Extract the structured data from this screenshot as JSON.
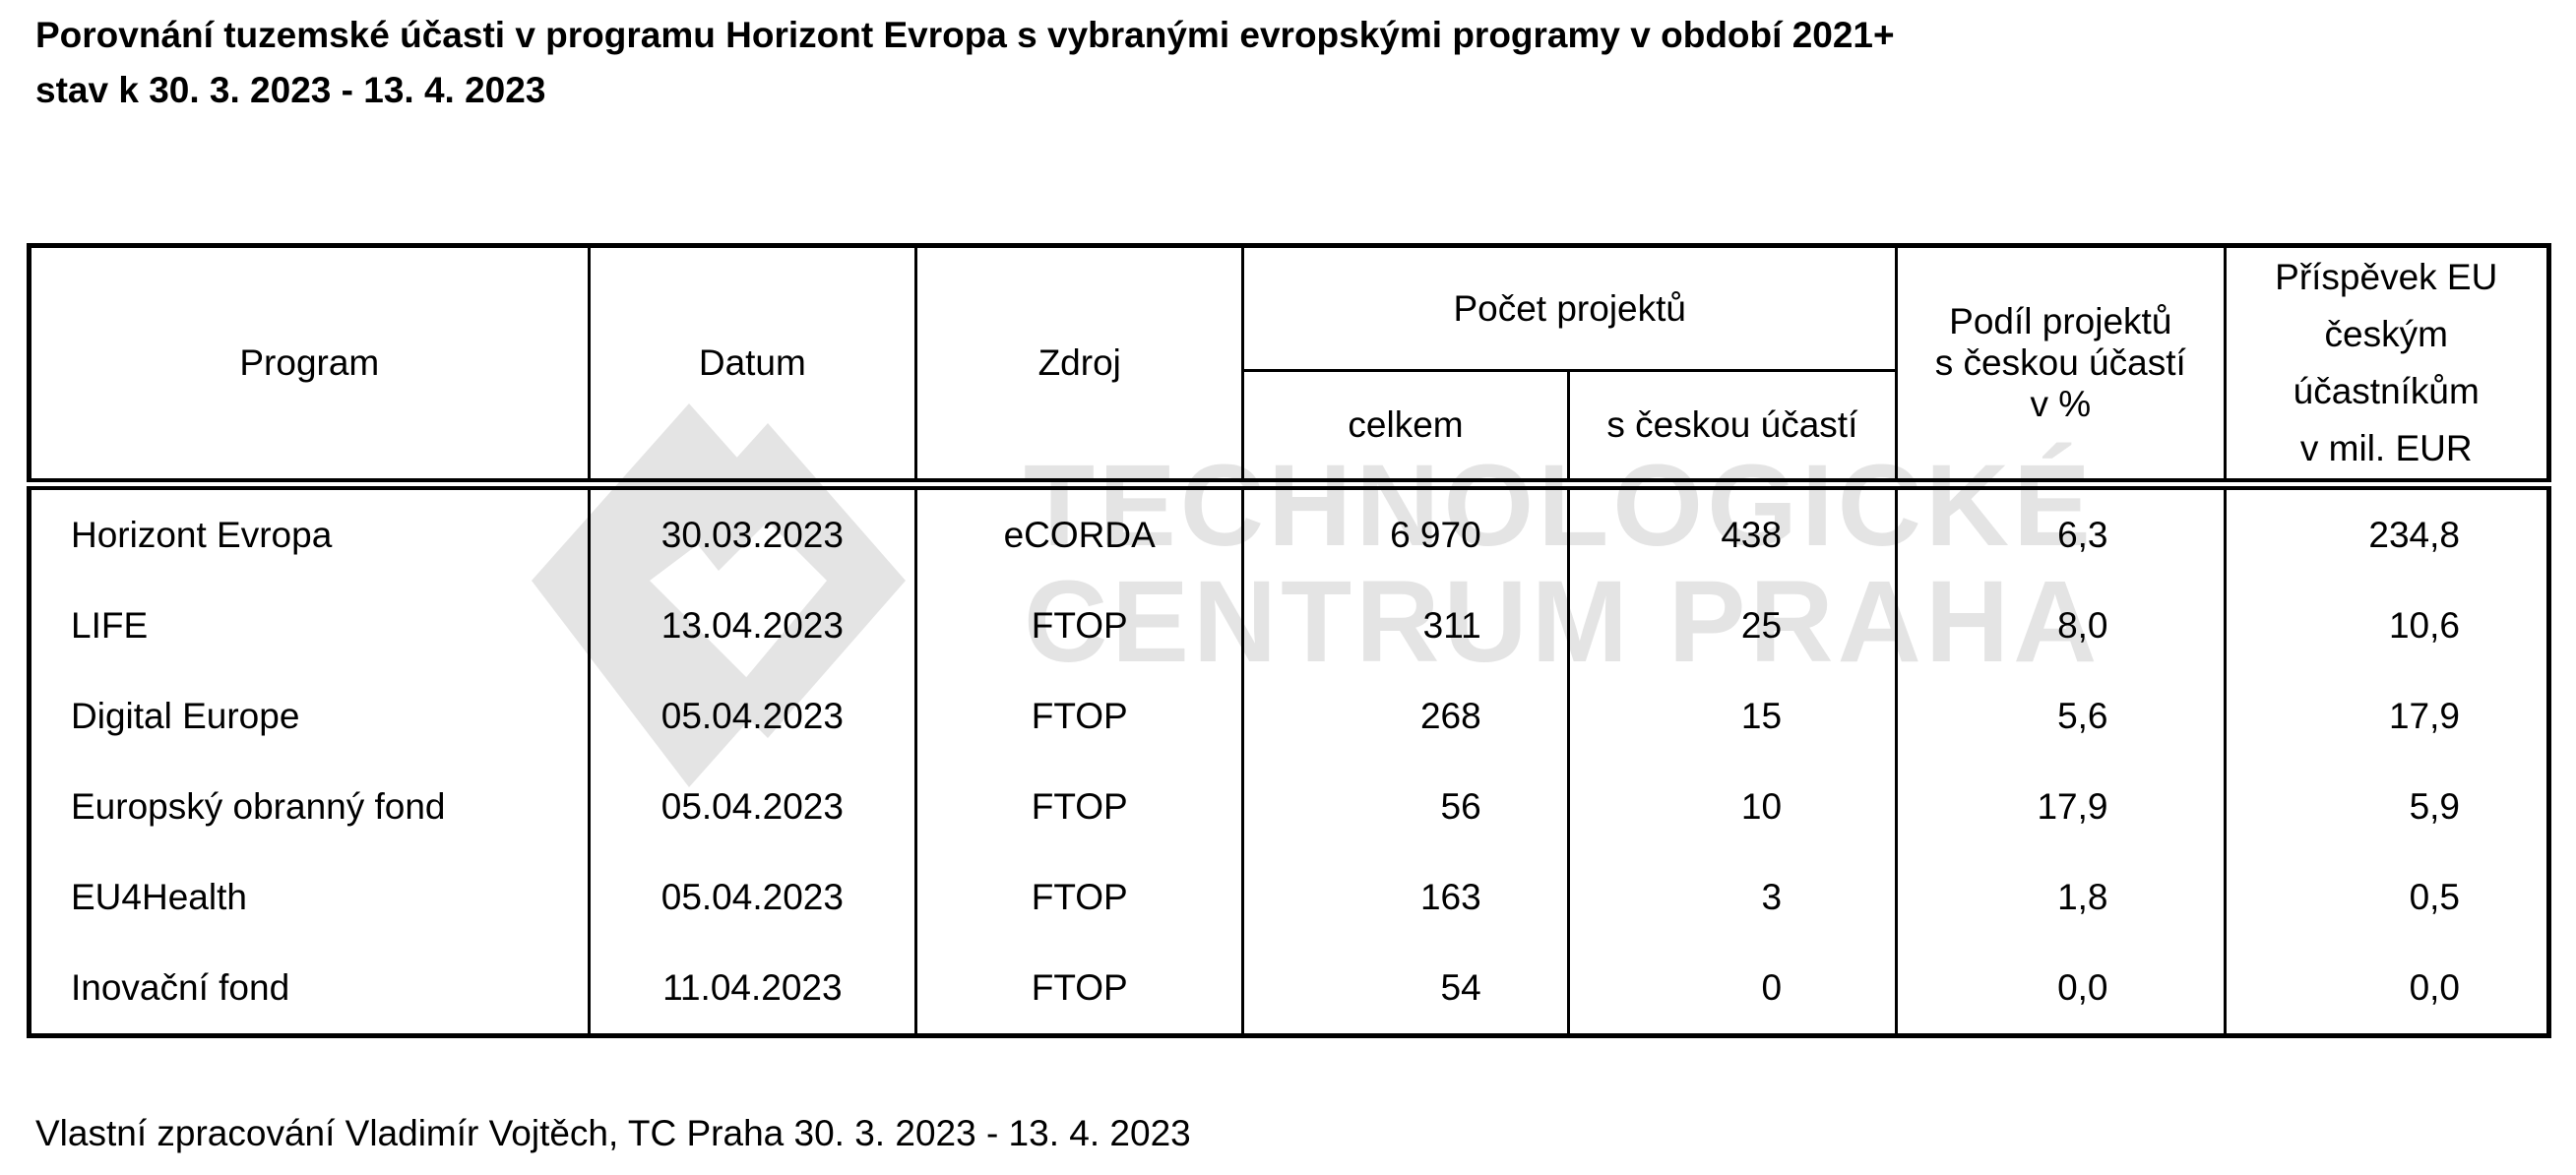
{
  "title": {
    "line1": "Porovnání tuzemské účasti v programu Horizont Evropa s vybranými evropskými programy v období 2021+",
    "line2": "stav k 30. 3. 2023 - 13. 4. 2023"
  },
  "watermark": {
    "line1": "TECHNOLOGICKÉ",
    "line2": "CENTRUM PRAHA",
    "color": "#e4e4e4"
  },
  "table": {
    "headers": {
      "program": "Program",
      "datum": "Datum",
      "zdroj": "Zdroj",
      "pocet": "Počet projektů",
      "celkem": "celkem",
      "s_ceskou": "s českou účastí",
      "podil": [
        "Podíl projektů",
        "s českou účastí",
        "v %"
      ],
      "prispevek": [
        "Příspěvek EU",
        "českým",
        "účastníkům",
        "v mil. EUR"
      ]
    },
    "rows": [
      {
        "program": "Horizont Evropa",
        "datum": "30.03.2023",
        "zdroj": "eCORDA",
        "celkem": "6 970",
        "s_ceskou": "438",
        "podil": "6,3",
        "prispevek": "234,8"
      },
      {
        "program": "LIFE",
        "datum": "13.04.2023",
        "zdroj": "FTOP",
        "celkem": "311",
        "s_ceskou": "25",
        "podil": "8,0",
        "prispevek": "10,6"
      },
      {
        "program": "Digital Europe",
        "datum": "05.04.2023",
        "zdroj": "FTOP",
        "celkem": "268",
        "s_ceskou": "15",
        "podil": "5,6",
        "prispevek": "17,9"
      },
      {
        "program": "Europský obranný fond",
        "datum": "05.04.2023",
        "zdroj": "FTOP",
        "celkem": "56",
        "s_ceskou": "10",
        "podil": "17,9",
        "prispevek": "5,9"
      },
      {
        "program": "EU4Health",
        "datum": "05.04.2023",
        "zdroj": "FTOP",
        "celkem": "163",
        "s_ceskou": "3",
        "podil": "1,8",
        "prispevek": "0,5"
      },
      {
        "program": "Inovační fond",
        "datum": "11.04.2023",
        "zdroj": "FTOP",
        "celkem": "54",
        "s_ceskou": "0",
        "podil": "0,0",
        "prispevek": "0,0"
      }
    ]
  },
  "footer": "Vlastní zpracování Vladimír Vojtěch, TC Praha 30. 3. 2023 - 13. 4. 2023"
}
